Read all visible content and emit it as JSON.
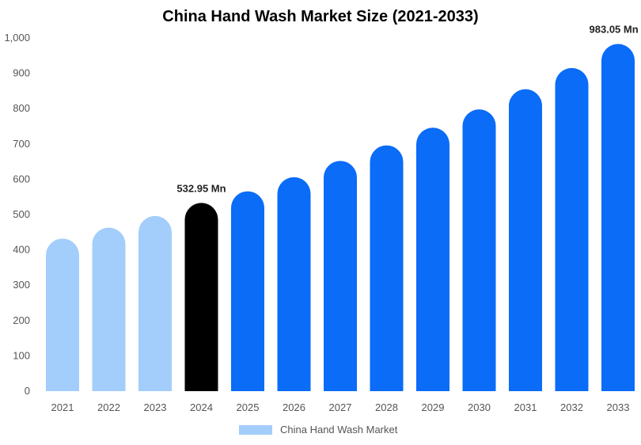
{
  "chart_data": {
    "type": "bar",
    "title": "China Hand Wash Market Size (2021-2033)",
    "categories": [
      "2021",
      "2022",
      "2023",
      "2024",
      "2025",
      "2026",
      "2027",
      "2028",
      "2029",
      "2030",
      "2031",
      "2032",
      "2033"
    ],
    "series": [
      {
        "name": "China Hand Wash Market",
        "values": [
          432,
          463,
          496,
          532.95,
          566,
          606,
          652,
          696,
          746,
          798,
          855,
          915,
          983.05
        ]
      }
    ],
    "data_labels": [
      {
        "category": "2024",
        "text": "532.95 Mn"
      },
      {
        "category": "2033",
        "text": "983.05 Mn"
      }
    ],
    "yticks": [
      "0",
      "100",
      "200",
      "300",
      "400",
      "500",
      "600",
      "700",
      "800",
      "900",
      "1,000"
    ],
    "ylim": [
      0,
      1000
    ],
    "grid": false,
    "legend_position": "bottom",
    "colors": {
      "historical": "#a3cdfb",
      "base_year": "#000000",
      "forecast": "#0a6cf7"
    },
    "color_by_category": [
      "historical",
      "historical",
      "historical",
      "base_year",
      "forecast",
      "forecast",
      "forecast",
      "forecast",
      "forecast",
      "forecast",
      "forecast",
      "forecast",
      "forecast"
    ]
  },
  "legend": {
    "label": "China Hand Wash Market",
    "color": "#a3cdfb"
  }
}
